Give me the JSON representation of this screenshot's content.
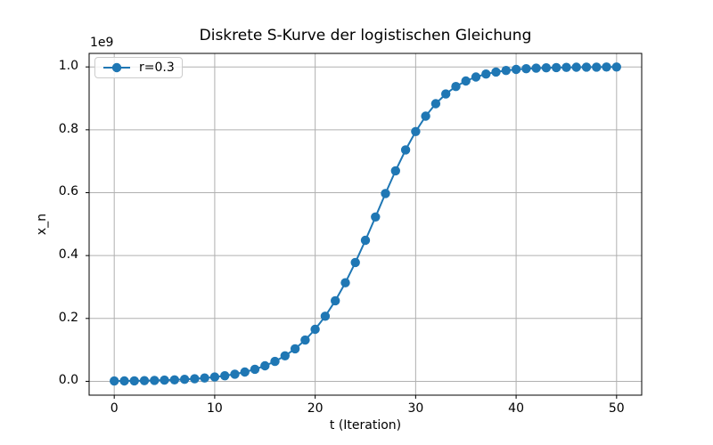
{
  "chart_data": {
    "type": "line",
    "title": "Diskrete S-Kurve der logistischen Gleichung",
    "xlabel": "t (Iteration)",
    "ylabel": "x_n",
    "y_offset_label": "1e9",
    "y_unit_multiplier": 1000000000,
    "grid": true,
    "legend_position": "upper left",
    "xlim": [
      -2.5,
      52.5
    ],
    "ylim": [
      -0.044,
      1.043
    ],
    "xticks": [
      0,
      10,
      20,
      30,
      40,
      50
    ],
    "xtick_labels": [
      "0",
      "10",
      "20",
      "30",
      "40",
      "50"
    ],
    "yticks": [
      0.0,
      0.2,
      0.4,
      0.6,
      0.8,
      1.0
    ],
    "ytick_labels": [
      "0.0",
      "0.2",
      "0.4",
      "0.6",
      "0.8",
      "1.0"
    ],
    "series": [
      {
        "label": "r=0.3",
        "color": "#1f77b4",
        "marker": "circle",
        "x": [
          0,
          1,
          2,
          3,
          4,
          5,
          6,
          7,
          8,
          9,
          10,
          11,
          12,
          13,
          14,
          15,
          16,
          17,
          18,
          19,
          20,
          21,
          22,
          23,
          24,
          25,
          26,
          27,
          28,
          29,
          30,
          31,
          32,
          33,
          34,
          35,
          36,
          37,
          38,
          39,
          40,
          41,
          42,
          43,
          44,
          45,
          46,
          47,
          48,
          49,
          50
        ],
        "y_in_1e9": [
          0.001,
          0.0013,
          0.001689,
          0.002195,
          0.002852,
          0.003705,
          0.004813,
          0.006249,
          0.008113,
          0.010527,
          0.013651,
          0.017691,
          0.022904,
          0.029618,
          0.03824,
          0.049274,
          0.063327,
          0.081122,
          0.103485,
          0.131317,
          0.165539,
          0.20698,
          0.25622,
          0.313389,
          0.377942,
          0.448473,
          0.522676,
          0.597522,
          0.669669,
          0.736033,
          0.794321,
          0.843332,
          0.882969,
          0.913969,
          0.93756,
          0.955122,
          0.967981,
          0.977279,
          0.98394,
          0.988681,
          0.992038,
          0.994408,
          0.996076,
          0.997249,
          0.998072,
          0.998649,
          0.999054,
          0.999337,
          0.999536,
          0.999675,
          0.999773
        ]
      }
    ],
    "colors": {
      "series": "#1f77b4",
      "grid": "#b0b0b0",
      "spine": "#000000",
      "legend_edge": "#cccccc",
      "background": "#ffffff"
    }
  }
}
